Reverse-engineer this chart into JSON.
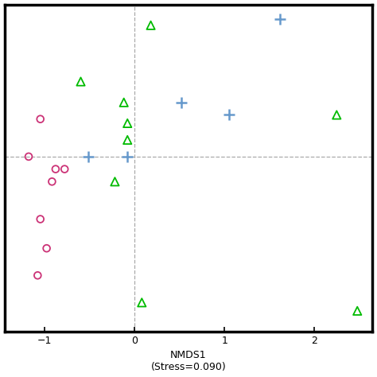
{
  "xlabel": "NMDS1\n(Stress=0.090)",
  "xlim": [
    -1.45,
    2.65
  ],
  "ylim": [
    -0.82,
    0.75
  ],
  "xticks": [
    -1,
    0,
    1,
    2
  ],
  "background_color": "#ffffff",
  "green_triangles": [
    [
      0.18,
      0.65
    ],
    [
      -0.6,
      0.38
    ],
    [
      -0.12,
      0.28
    ],
    [
      -0.08,
      0.18
    ],
    [
      -0.08,
      0.1
    ],
    [
      -0.22,
      -0.1
    ],
    [
      2.25,
      0.22
    ],
    [
      0.08,
      -0.68
    ],
    [
      2.48,
      -0.72
    ]
  ],
  "blue_plusses": [
    [
      1.62,
      0.68
    ],
    [
      0.52,
      0.28
    ],
    [
      1.05,
      0.22
    ],
    [
      -0.52,
      0.02
    ],
    [
      -0.08,
      0.02
    ]
  ],
  "pink_circles": [
    [
      -1.05,
      0.2
    ],
    [
      -1.18,
      0.02
    ],
    [
      -0.88,
      -0.04
    ],
    [
      -0.78,
      -0.04
    ],
    [
      -0.92,
      -0.1
    ],
    [
      -1.05,
      -0.28
    ],
    [
      -0.98,
      -0.42
    ],
    [
      -1.08,
      -0.55
    ]
  ],
  "green_color": "#00bb00",
  "blue_color": "#6699cc",
  "pink_color": "#cc3377",
  "triangle_size": 55,
  "circle_size": 40,
  "plus_size": 90,
  "marker_linewidth": 1.3,
  "plus_linewidth": 1.8,
  "hline_y": 0.02,
  "vline_x": 0.0,
  "dash_color": "#aaaaaa",
  "spine_linewidth": 2.5
}
